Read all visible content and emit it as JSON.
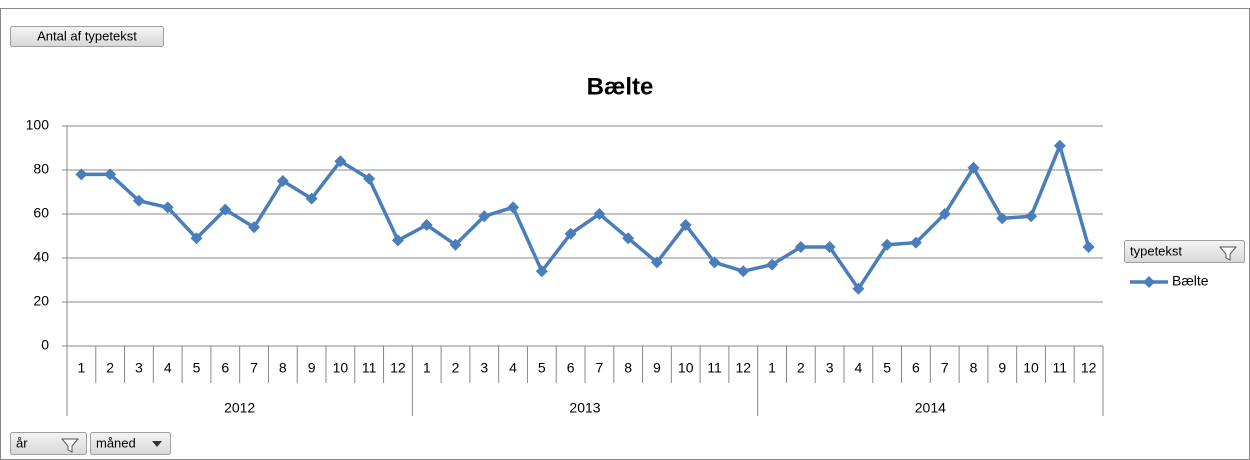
{
  "chart_data": {
    "type": "line",
    "title": "Bælte",
    "categories": [
      "1",
      "2",
      "3",
      "4",
      "5",
      "6",
      "7",
      "8",
      "9",
      "10",
      "11",
      "12",
      "1",
      "2",
      "3",
      "4",
      "5",
      "6",
      "7",
      "8",
      "9",
      "10",
      "11",
      "12",
      "1",
      "2",
      "3",
      "4",
      "5",
      "6",
      "7",
      "8",
      "9",
      "10",
      "11",
      "12"
    ],
    "groups": [
      "2012",
      "2013",
      "2014"
    ],
    "series": [
      {
        "name": "Bælte",
        "color": "#4a7ebb",
        "values": [
          78,
          78,
          66,
          63,
          49,
          62,
          54,
          75,
          67,
          84,
          76,
          48,
          55,
          46,
          59,
          63,
          34,
          51,
          60,
          49,
          38,
          55,
          38,
          34,
          37,
          45,
          45,
          26,
          46,
          47,
          60,
          81,
          58,
          59,
          91,
          45
        ]
      }
    ],
    "ylim": [
      0,
      100
    ],
    "yticks": [
      0,
      20,
      40,
      60,
      80,
      100
    ],
    "grid": true,
    "legend": "right"
  },
  "buttons": {
    "values": "Antal af typetekst",
    "legend": "typetekst",
    "axis": [
      "år",
      "måned"
    ]
  }
}
